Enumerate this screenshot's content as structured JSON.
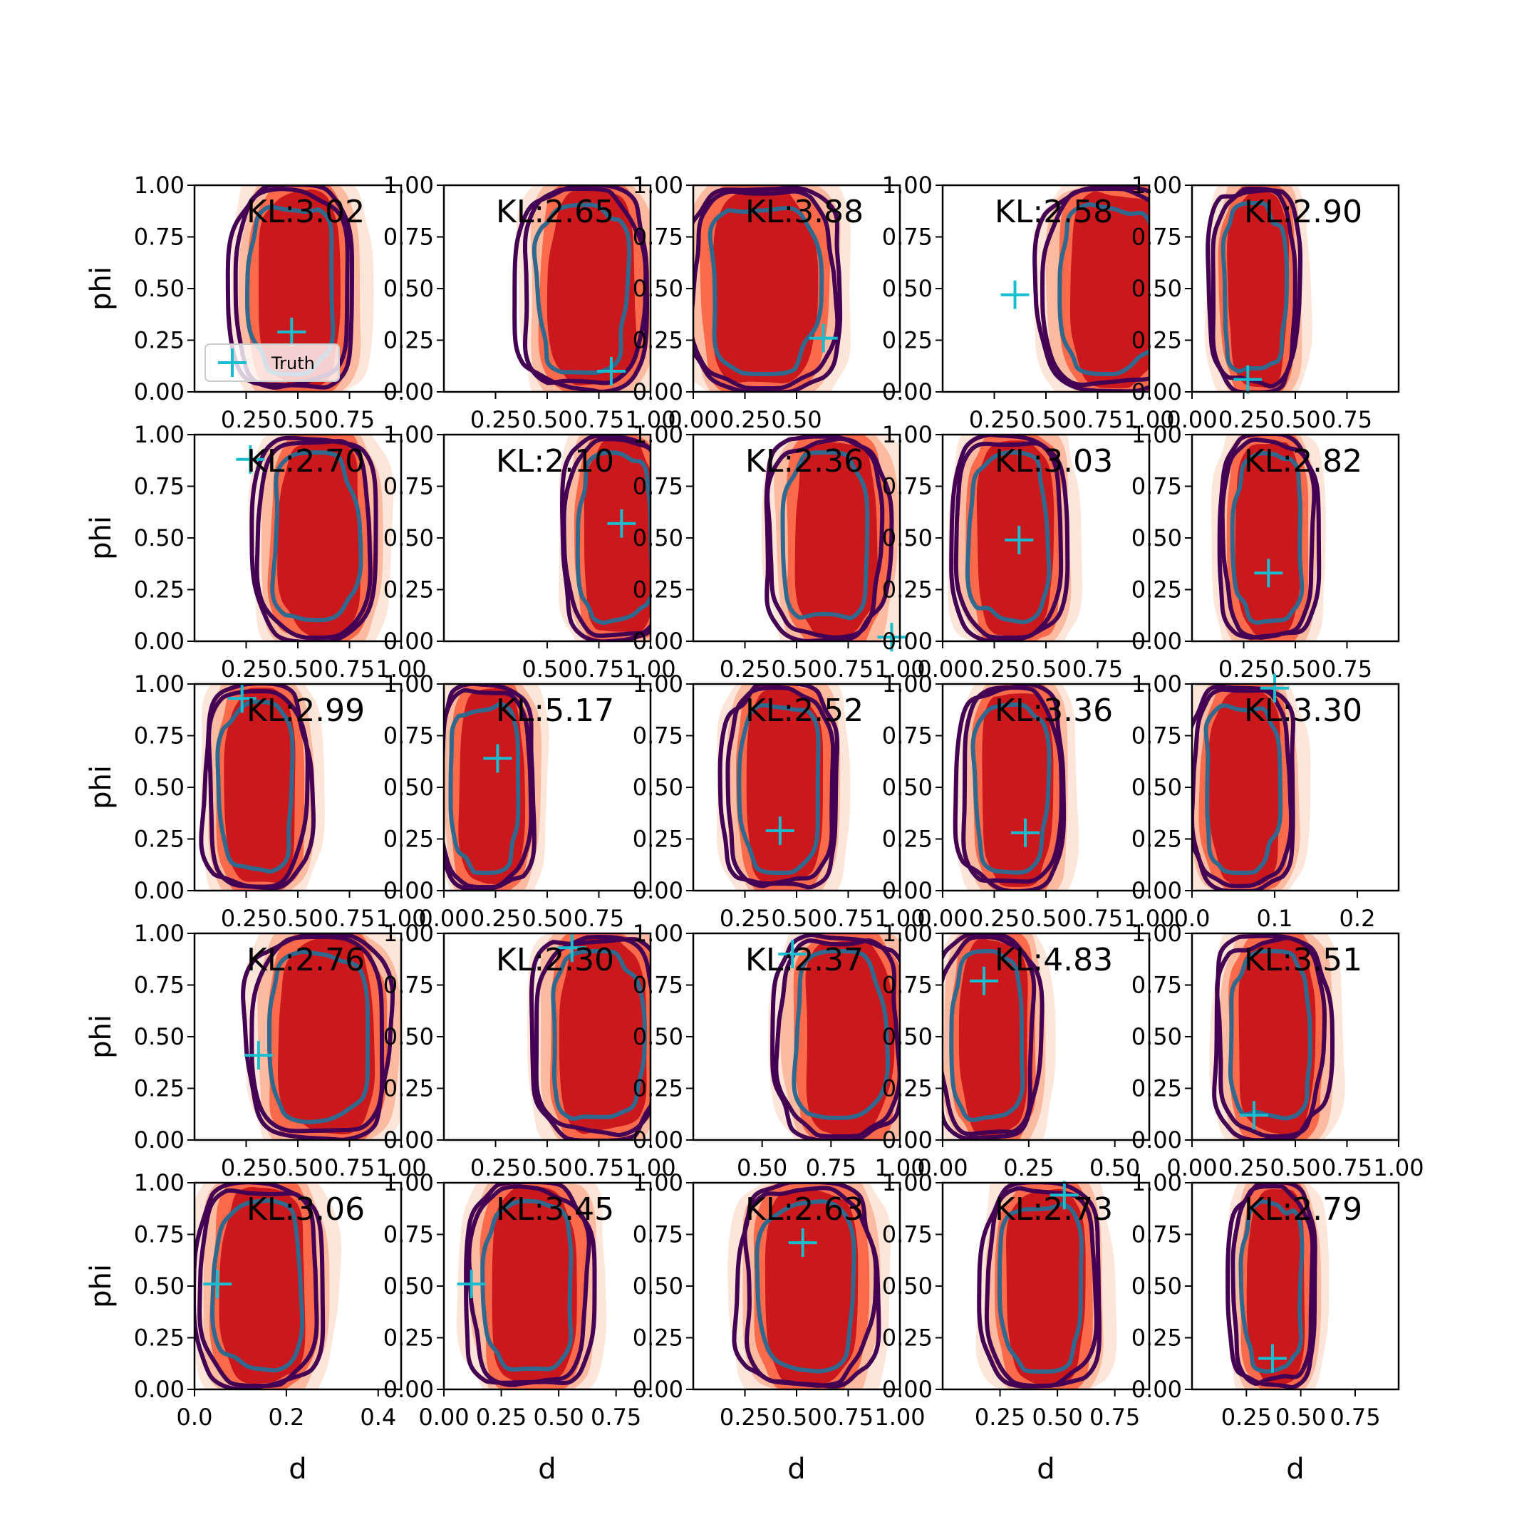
{
  "chart_data": {
    "type": "contour-grid",
    "grid": {
      "rows": 5,
      "cols": 5
    },
    "xlabel": "d",
    "ylabel": "phi",
    "yticks": [
      "0.00",
      "0.25",
      "0.50",
      "0.75",
      "1.00"
    ],
    "ylim": [
      0,
      1
    ],
    "legend": {
      "label": "Truth",
      "placement": "lower-left",
      "panel": 0
    },
    "colors": {
      "fill_dark": "#cb181d",
      "fill_mid": "#fb6a4a",
      "fill_light": "#fcbba1",
      "fill_faint": "#fee5d9",
      "contour_outer": "#440154",
      "contour_inner": "#31688e",
      "truth": "#17becf"
    },
    "panels": [
      {
        "kl": "KL:3.02",
        "xlim": [
          0,
          1
        ],
        "xticks": [
          "0.25",
          "0.50",
          "0.75"
        ],
        "center": [
          0.47,
          0.5
        ],
        "width": 0.3,
        "fill_offset": 0.04,
        "truth": [
          0.47,
          0.29
        ]
      },
      {
        "kl": "KL:2.65",
        "xlim": [
          0,
          1
        ],
        "xticks": [
          "0.25",
          "0.50",
          "0.75",
          "1.00"
        ],
        "center": [
          0.67,
          0.5
        ],
        "width": 0.32,
        "fill_offset": 0.05,
        "truth": [
          0.81,
          0.1
        ]
      },
      {
        "kl": "KL:3.88",
        "xlim": [
          0,
          1
        ],
        "xticks": [
          "0.00",
          "0.25",
          "0.50"
        ],
        "center": [
          0.34,
          0.5
        ],
        "width": 0.38,
        "fill_offset": 0.0,
        "truth": [
          0.63,
          0.26
        ]
      },
      {
        "kl": "KL:2.58",
        "xlim": [
          0,
          1
        ],
        "xticks": [
          "0.25",
          "0.50",
          "0.75",
          "1.00"
        ],
        "center": [
          0.8,
          0.5
        ],
        "width": 0.34,
        "fill_offset": 0.04,
        "truth": [
          0.35,
          0.47
        ]
      },
      {
        "kl": "KL:2.90",
        "xlim": [
          0,
          1
        ],
        "xticks": [
          "0.00",
          "0.25",
          "0.50",
          "0.75"
        ],
        "center": [
          0.3,
          0.5
        ],
        "width": 0.22,
        "fill_offset": 0.02,
        "truth": [
          0.27,
          0.06
        ]
      },
      {
        "kl": "KL:2.70",
        "xlim": [
          0,
          1
        ],
        "xticks": [
          "0.25",
          "0.50",
          "0.75",
          "1.00"
        ],
        "center": [
          0.58,
          0.5
        ],
        "width": 0.3,
        "fill_offset": 0.03,
        "truth": [
          0.27,
          0.88
        ]
      },
      {
        "kl": "KL:2.10",
        "xlim": [
          0,
          1
        ],
        "xticks": [
          "0.50",
          "0.75",
          "1.00"
        ],
        "center": [
          0.83,
          0.5
        ],
        "width": 0.26,
        "fill_offset": 0.02,
        "truth": [
          0.86,
          0.57
        ]
      },
      {
        "kl": "KL:2.36",
        "xlim": [
          0,
          1
        ],
        "xticks": [
          "0.25",
          "0.50",
          "0.75",
          "1.00"
        ],
        "center": [
          0.64,
          0.5
        ],
        "width": 0.3,
        "fill_offset": 0.05,
        "truth": [
          0.96,
          0.02
        ]
      },
      {
        "kl": "KL:3.03",
        "xlim": [
          0,
          1
        ],
        "xticks": [
          "0.00",
          "0.25",
          "0.50",
          "0.75"
        ],
        "center": [
          0.32,
          0.5
        ],
        "width": 0.28,
        "fill_offset": 0.03,
        "truth": [
          0.37,
          0.49
        ]
      },
      {
        "kl": "KL:2.82",
        "xlim": [
          0,
          1
        ],
        "xticks": [
          "0.25",
          "0.50",
          "0.75"
        ],
        "center": [
          0.37,
          0.5
        ],
        "width": 0.24,
        "fill_offset": 0.0,
        "truth": [
          0.37,
          0.33
        ]
      },
      {
        "kl": "KL:2.99",
        "xlim": [
          0,
          1
        ],
        "xticks": [
          "0.25",
          "0.50",
          "0.75",
          "1.00"
        ],
        "center": [
          0.3,
          0.5
        ],
        "width": 0.26,
        "fill_offset": 0.02,
        "truth": [
          0.23,
          0.93
        ]
      },
      {
        "kl": "KL:5.17",
        "xlim": [
          0,
          1
        ],
        "xticks": [
          "0.00",
          "0.25",
          "0.50",
          "0.75"
        ],
        "center": [
          0.2,
          0.5
        ],
        "width": 0.24,
        "fill_offset": 0.03,
        "truth": [
          0.26,
          0.64
        ]
      },
      {
        "kl": "KL:2.52",
        "xlim": [
          0,
          1
        ],
        "xticks": [
          "0.25",
          "0.50",
          "0.75",
          "1.00"
        ],
        "center": [
          0.42,
          0.5
        ],
        "width": 0.28,
        "fill_offset": 0.02,
        "truth": [
          0.42,
          0.29
        ]
      },
      {
        "kl": "KL:3.36",
        "xlim": [
          0,
          1
        ],
        "xticks": [
          "0.00",
          "0.25",
          "0.50",
          "0.75",
          "1.00"
        ],
        "center": [
          0.33,
          0.5
        ],
        "width": 0.26,
        "fill_offset": 0.03,
        "truth": [
          0.4,
          0.28
        ]
      },
      {
        "kl": "KL:3.30",
        "xlim": [
          0,
          0.25
        ],
        "xticks": [
          "0.0",
          "0.1",
          "0.2"
        ],
        "center": [
          0.06,
          0.5
        ],
        "width": 0.065,
        "fill_offset": 0.005,
        "truth": [
          0.1,
          0.98
        ]
      },
      {
        "kl": "KL:2.76",
        "xlim": [
          0,
          1
        ],
        "xticks": [
          "0.25",
          "0.50",
          "0.75",
          "1.00"
        ],
        "center": [
          0.6,
          0.5
        ],
        "width": 0.35,
        "fill_offset": 0.04,
        "truth": [
          0.31,
          0.41
        ]
      },
      {
        "kl": "KL:2.30",
        "xlim": [
          0,
          1
        ],
        "xticks": [
          "0.25",
          "0.50",
          "0.75",
          "1.00"
        ],
        "center": [
          0.74,
          0.5
        ],
        "width": 0.32,
        "fill_offset": 0.03,
        "truth": [
          0.62,
          0.93
        ]
      },
      {
        "kl": "KL:2.37",
        "xlim": [
          0.25,
          1
        ],
        "xticks": [
          "0.50",
          "0.75",
          "1.00"
        ],
        "center": [
          0.78,
          0.5
        ],
        "width": 0.24,
        "fill_offset": 0.03,
        "truth": [
          0.61,
          0.9
        ]
      },
      {
        "kl": "KL:4.83",
        "xlim": [
          0,
          0.6
        ],
        "xticks": [
          "0.00",
          "0.25",
          "0.50"
        ],
        "center": [
          0.13,
          0.5
        ],
        "width": 0.15,
        "fill_offset": 0.02,
        "truth": [
          0.12,
          0.77
        ]
      },
      {
        "kl": "KL:3.51",
        "xlim": [
          0,
          1
        ],
        "xticks": [
          "0.00",
          "0.25",
          "0.50",
          "0.75",
          "1.00"
        ],
        "center": [
          0.38,
          0.5
        ],
        "width": 0.28,
        "fill_offset": 0.03,
        "truth": [
          0.3,
          0.12
        ]
      },
      {
        "kl": "KL:3.06",
        "xlim": [
          0,
          0.45
        ],
        "xticks": [
          "0.0",
          "0.2",
          "0.4"
        ],
        "center": [
          0.14,
          0.5
        ],
        "width": 0.14,
        "fill_offset": 0.01,
        "truth": [
          0.05,
          0.51
        ]
      },
      {
        "kl": "KL:3.45",
        "xlim": [
          0,
          0.9
        ],
        "xticks": [
          "0.00",
          "0.25",
          "0.50",
          "0.75"
        ],
        "center": [
          0.37,
          0.5
        ],
        "width": 0.28,
        "fill_offset": 0.02,
        "truth": [
          0.12,
          0.51
        ]
      },
      {
        "kl": "KL:2.63",
        "xlim": [
          0,
          1
        ],
        "xticks": [
          "0.25",
          "0.50",
          "0.75",
          "1.00"
        ],
        "center": [
          0.55,
          0.5
        ],
        "width": 0.34,
        "fill_offset": 0.02,
        "truth": [
          0.53,
          0.71
        ]
      },
      {
        "kl": "KL:2.73",
        "xlim": [
          0,
          0.9
        ],
        "xticks": [
          "0.25",
          "0.50",
          "0.75"
        ],
        "center": [
          0.43,
          0.5
        ],
        "width": 0.26,
        "fill_offset": 0.02,
        "truth": [
          0.53,
          0.94
        ]
      },
      {
        "kl": "KL:2.79",
        "xlim": [
          0,
          0.95
        ],
        "xticks": [
          "0.25",
          "0.50",
          "0.75"
        ],
        "center": [
          0.37,
          0.5
        ],
        "width": 0.2,
        "fill_offset": 0.02,
        "truth": [
          0.37,
          0.15
        ]
      }
    ]
  }
}
